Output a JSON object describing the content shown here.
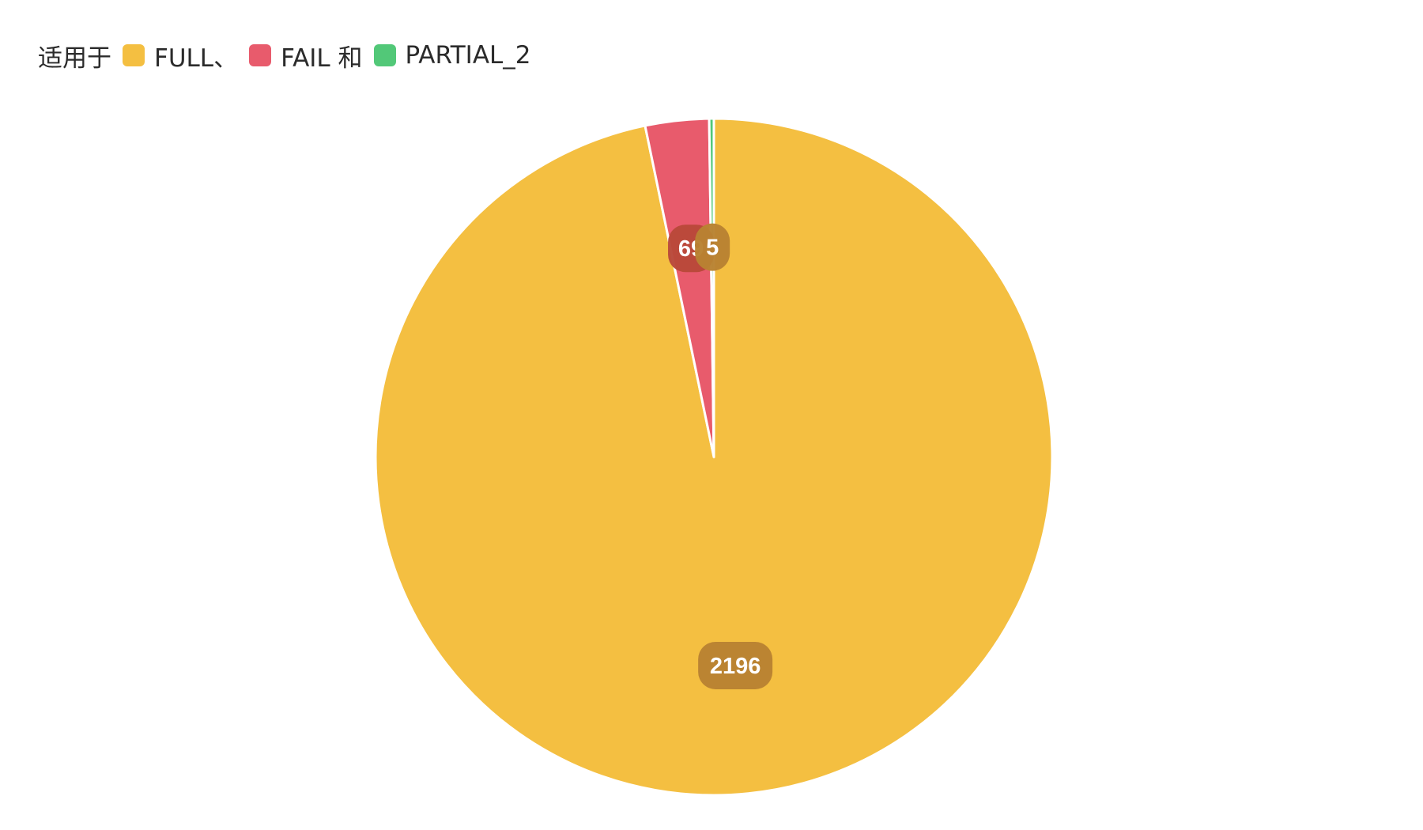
{
  "legend": {
    "prefix": "适用于",
    "items": [
      {
        "label": "FULL、",
        "color": "#F4BF41"
      },
      {
        "label": "FAIL 和",
        "color": "#E85B6C"
      },
      {
        "label": "PARTIAL_2",
        "color": "#52C878"
      }
    ]
  },
  "chart_data": {
    "type": "pie",
    "title": "",
    "categories": [
      "FULL",
      "FAIL",
      "PARTIAL_2"
    ],
    "values": [
      2196,
      69,
      5
    ],
    "colors": [
      "#F4BF41",
      "#E85B6C",
      "#52C878"
    ],
    "label_colors": [
      "#B98232",
      "#B9483A",
      "#B98232"
    ],
    "data_labels": [
      "2196",
      "69",
      "5"
    ],
    "legend_position": "top-left"
  }
}
